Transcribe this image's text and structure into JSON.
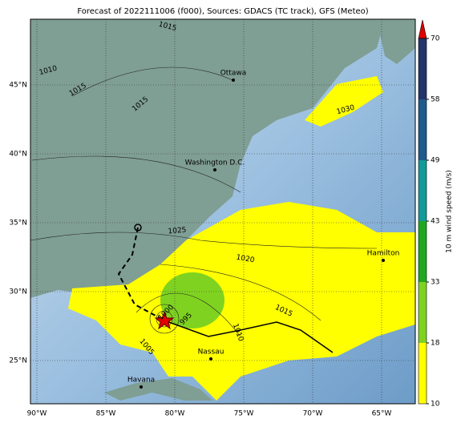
{
  "title": "Forecast of 2022111006 (f000), Sources: GDACS (TC track), GFS (Meteo)",
  "map": {
    "lon_ticks": [
      {
        "value": -90,
        "label": "90°W"
      },
      {
        "value": -85,
        "label": "85°W"
      },
      {
        "value": -80,
        "label": "80°W"
      },
      {
        "value": -75,
        "label": "75°W"
      },
      {
        "value": -70,
        "label": "70°W"
      },
      {
        "value": -65,
        "label": "65°W"
      }
    ],
    "lat_ticks": [
      {
        "value": 25,
        "label": "25°N"
      },
      {
        "value": 30,
        "label": "30°N"
      },
      {
        "value": 35,
        "label": "35°N"
      },
      {
        "value": 40,
        "label": "40°N"
      },
      {
        "value": 45,
        "label": "45°N"
      }
    ],
    "cities": [
      "Ottawa",
      "Washington D.C.",
      "Hamilton",
      "Nassau",
      "Havana"
    ],
    "isobar_labels": [
      "1015",
      "1010",
      "1015",
      "1015",
      "1030",
      "1025",
      "1020",
      "1015",
      "1010",
      "1005",
      "1000",
      "995"
    ]
  },
  "colorbar": {
    "label": "10 m wind speed (m/s)",
    "ticks": [
      10,
      18,
      33,
      43,
      49,
      58,
      70
    ],
    "colors": [
      "#ffff00",
      "#7fd320",
      "#1fa81f",
      "#129a9a",
      "#1f5a8c",
      "#25356b"
    ]
  }
}
